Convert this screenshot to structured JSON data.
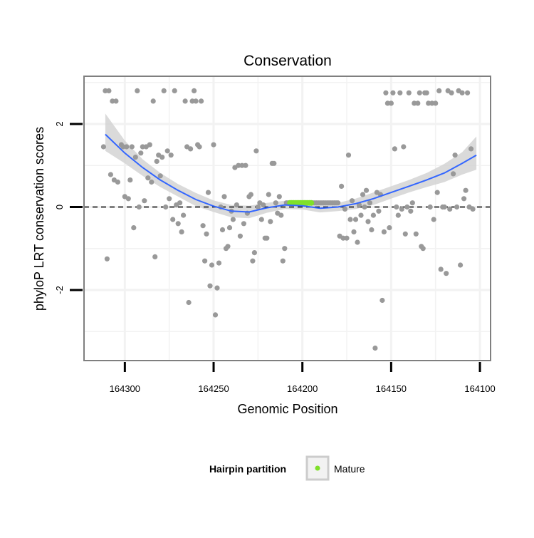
{
  "chart_data": {
    "type": "scatter",
    "title": "Conservation",
    "xlabel": "Genomic Position",
    "ylabel": "phyloP LRT conservation scores",
    "x_reversed": true,
    "xlim": [
      164323,
      164094
    ],
    "ylim": [
      -3.7,
      3.15
    ],
    "x_ticks": [
      164300,
      164250,
      164200,
      164150,
      164100
    ],
    "y_ticks": [
      -2,
      0,
      2
    ],
    "reference_line_y": 0,
    "grid": true,
    "colors": {
      "points": "#999999",
      "mature": "#7fe02a",
      "smooth": "#3366ff",
      "ribbon": "#d4d4d4",
      "panel_border": "#7f7f7f",
      "grid": "#f2f2f2"
    },
    "legend": {
      "title": "Hairpin partition",
      "entries": [
        {
          "label": "Mature",
          "color": "#7fe02a"
        }
      ],
      "position": "bottom"
    },
    "series": [
      {
        "name": "phyloP scores",
        "points": [
          [
            164312,
            1.45
          ],
          [
            164311,
            2.8
          ],
          [
            164310,
            -1.25
          ],
          [
            164309,
            2.8
          ],
          [
            164308,
            0.78
          ],
          [
            164307,
            2.55
          ],
          [
            164306,
            0.65
          ],
          [
            164305,
            2.55
          ],
          [
            164304,
            0.6
          ],
          [
            164302,
            1.5
          ],
          [
            164301,
            1.45
          ],
          [
            164300,
            0.25
          ],
          [
            164299,
            1.45
          ],
          [
            164298,
            0.2
          ],
          [
            164297,
            0.65
          ],
          [
            164296,
            1.45
          ],
          [
            164295,
            -0.5
          ],
          [
            164294,
            1.2
          ],
          [
            164293,
            2.8
          ],
          [
            164292,
            0.0
          ],
          [
            164291,
            1.3
          ],
          [
            164290,
            1.45
          ],
          [
            164289,
            0.15
          ],
          [
            164288,
            1.45
          ],
          [
            164287,
            0.7
          ],
          [
            164286,
            1.5
          ],
          [
            164285,
            0.6
          ],
          [
            164284,
            2.55
          ],
          [
            164283,
            -1.2
          ],
          [
            164282,
            1.1
          ],
          [
            164281,
            1.25
          ],
          [
            164280,
            0.75
          ],
          [
            164279,
            1.2
          ],
          [
            164278,
            2.8
          ],
          [
            164277,
            0.0
          ],
          [
            164276,
            1.35
          ],
          [
            164275,
            0.2
          ],
          [
            164274,
            1.25
          ],
          [
            164273,
            -0.3
          ],
          [
            164272,
            2.8
          ],
          [
            164271,
            0.05
          ],
          [
            164270,
            -0.4
          ],
          [
            164269,
            0.1
          ],
          [
            164268,
            -0.6
          ],
          [
            164267,
            -0.2
          ],
          [
            164266,
            2.55
          ],
          [
            164265,
            1.45
          ],
          [
            164264,
            -2.3
          ],
          [
            164263,
            1.4
          ],
          [
            164262,
            2.55
          ],
          [
            164261,
            2.8
          ],
          [
            164260,
            2.55
          ],
          [
            164259,
            1.5
          ],
          [
            164258,
            1.45
          ],
          [
            164257,
            2.55
          ],
          [
            164256,
            -0.45
          ],
          [
            164255,
            -1.3
          ],
          [
            164254,
            -0.65
          ],
          [
            164253,
            0.35
          ],
          [
            164252,
            -1.9
          ],
          [
            164251,
            -1.4
          ],
          [
            164250,
            1.5
          ],
          [
            164249,
            -2.6
          ],
          [
            164248,
            -1.95
          ],
          [
            164247,
            -1.35
          ],
          [
            164246,
            0.0
          ],
          [
            164245,
            -0.55
          ],
          [
            164244,
            0.25
          ],
          [
            164243,
            -1.0
          ],
          [
            164242,
            -0.95
          ],
          [
            164241,
            -0.5
          ],
          [
            164240,
            -0.1
          ],
          [
            164239,
            -0.3
          ],
          [
            164238,
            0.95
          ],
          [
            164237,
            0.05
          ],
          [
            164236,
            1.0
          ],
          [
            164235,
            -0.7
          ],
          [
            164234,
            1.0
          ],
          [
            164233,
            -0.4
          ],
          [
            164232,
            1.0
          ],
          [
            164231,
            -0.15
          ],
          [
            164230,
            0.25
          ],
          [
            164229,
            0.3
          ],
          [
            164228,
            -1.3
          ],
          [
            164227,
            -1.1
          ],
          [
            164226,
            1.35
          ],
          [
            164225,
            0.0
          ],
          [
            164224,
            0.1
          ],
          [
            164223,
            -0.3
          ],
          [
            164222,
            0.05
          ],
          [
            164221,
            -0.75
          ],
          [
            164220,
            -0.75
          ],
          [
            164219,
            0.3
          ],
          [
            164218,
            -0.35
          ],
          [
            164217,
            1.05
          ],
          [
            164216,
            1.05
          ],
          [
            164215,
            0.1
          ],
          [
            164214,
            -0.15
          ],
          [
            164213,
            0.25
          ],
          [
            164212,
            -0.2
          ],
          [
            164211,
            -1.3
          ],
          [
            164210,
            -1.0
          ],
          [
            164209,
            0.1
          ],
          [
            164208,
            0.1
          ],
          [
            164194,
            0.1
          ],
          [
            164193,
            0.1
          ],
          [
            164192,
            0.1
          ],
          [
            164191,
            0.1
          ],
          [
            164190,
            0.1
          ],
          [
            164189,
            0.1
          ],
          [
            164188,
            0.1
          ],
          [
            164187,
            0.1
          ],
          [
            164186,
            0.1
          ],
          [
            164185,
            0.1
          ],
          [
            164184,
            0.1
          ],
          [
            164183,
            0.1
          ],
          [
            164182,
            0.1
          ],
          [
            164181,
            0.1
          ],
          [
            164180,
            0.1
          ],
          [
            164179,
            -0.7
          ],
          [
            164178,
            0.5
          ],
          [
            164177,
            -0.75
          ],
          [
            164176,
            -0.05
          ],
          [
            164175,
            -0.75
          ],
          [
            164174,
            1.25
          ],
          [
            164173,
            -0.3
          ],
          [
            164172,
            0.15
          ],
          [
            164171,
            -0.6
          ],
          [
            164170,
            -0.3
          ],
          [
            164169,
            -0.85
          ],
          [
            164168,
            0.05
          ],
          [
            164167,
            -0.2
          ],
          [
            164166,
            0.3
          ],
          [
            164165,
            0.0
          ],
          [
            164164,
            0.4
          ],
          [
            164163,
            -0.35
          ],
          [
            164162,
            0.1
          ],
          [
            164161,
            -0.55
          ],
          [
            164160,
            -0.2
          ],
          [
            164159,
            -3.4
          ],
          [
            164158,
            0.35
          ],
          [
            164157,
            -0.1
          ],
          [
            164156,
            0.3
          ],
          [
            164155,
            -2.25
          ],
          [
            164154,
            -0.6
          ],
          [
            164153,
            2.75
          ],
          [
            164152,
            2.5
          ],
          [
            164151,
            -0.5
          ],
          [
            164150,
            2.5
          ],
          [
            164149,
            2.75
          ],
          [
            164148,
            1.4
          ],
          [
            164147,
            0.0
          ],
          [
            164146,
            -0.2
          ],
          [
            164145,
            2.75
          ],
          [
            164144,
            -0.05
          ],
          [
            164143,
            1.45
          ],
          [
            164142,
            -0.65
          ],
          [
            164141,
            0.0
          ],
          [
            164140,
            2.75
          ],
          [
            164139,
            -0.1
          ],
          [
            164138,
            0.1
          ],
          [
            164137,
            2.5
          ],
          [
            164136,
            -0.65
          ],
          [
            164135,
            2.5
          ],
          [
            164134,
            2.75
          ],
          [
            164133,
            -0.95
          ],
          [
            164132,
            -1.0
          ],
          [
            164131,
            2.75
          ],
          [
            164130,
            2.75
          ],
          [
            164129,
            2.5
          ],
          [
            164128,
            0.0
          ],
          [
            164127,
            2.5
          ],
          [
            164126,
            -0.3
          ],
          [
            164125,
            2.5
          ],
          [
            164124,
            0.35
          ],
          [
            164123,
            2.8
          ],
          [
            164122,
            -1.5
          ],
          [
            164121,
            0.0
          ],
          [
            164120,
            0.0
          ],
          [
            164119,
            -1.6
          ],
          [
            164118,
            2.8
          ],
          [
            164117,
            -0.05
          ],
          [
            164116,
            2.75
          ],
          [
            164115,
            0.8
          ],
          [
            164114,
            1.25
          ],
          [
            164113,
            0.0
          ],
          [
            164112,
            2.8
          ],
          [
            164111,
            -1.4
          ],
          [
            164110,
            2.75
          ],
          [
            164109,
            0.2
          ],
          [
            164108,
            0.4
          ],
          [
            164107,
            2.75
          ],
          [
            164106,
            0.0
          ],
          [
            164105,
            1.4
          ],
          [
            164104,
            -0.05
          ]
        ]
      },
      {
        "name": "Mature",
        "points": [
          [
            164207,
            0.1
          ],
          [
            164206,
            0.1
          ],
          [
            164205,
            0.1
          ],
          [
            164204,
            0.1
          ],
          [
            164203,
            0.1
          ],
          [
            164202,
            0.1
          ],
          [
            164201,
            0.1
          ],
          [
            164200,
            0.1
          ],
          [
            164199,
            0.1
          ],
          [
            164198,
            0.1
          ],
          [
            164197,
            0.1
          ],
          [
            164196,
            0.1
          ],
          [
            164195,
            0.1
          ]
        ]
      }
    ],
    "smooth": {
      "method": "loess",
      "x": [
        164311,
        164300,
        164290,
        164280,
        164270,
        164260,
        164250,
        164240,
        164230,
        164220,
        164210,
        164200,
        164190,
        164180,
        164170,
        164160,
        164150,
        164140,
        164130,
        164120,
        164110,
        164102
      ],
      "y": [
        1.75,
        1.3,
        0.95,
        0.65,
        0.4,
        0.18,
        0.02,
        -0.1,
        -0.12,
        -0.02,
        0.05,
        0.03,
        -0.03,
        0.0,
        0.08,
        0.2,
        0.35,
        0.5,
        0.65,
        0.82,
        1.05,
        1.25
      ],
      "lower": [
        1.35,
        1.05,
        0.75,
        0.48,
        0.25,
        0.02,
        -0.12,
        -0.25,
        -0.27,
        -0.14,
        -0.05,
        -0.06,
        -0.13,
        -0.1,
        -0.05,
        0.05,
        0.2,
        0.35,
        0.48,
        0.6,
        0.78,
        0.9
      ],
      "upper": [
        2.25,
        1.6,
        1.15,
        0.82,
        0.55,
        0.34,
        0.16,
        0.05,
        0.03,
        0.1,
        0.15,
        0.13,
        0.07,
        0.1,
        0.2,
        0.35,
        0.5,
        0.65,
        0.82,
        1.04,
        1.32,
        1.7
      ]
    }
  }
}
